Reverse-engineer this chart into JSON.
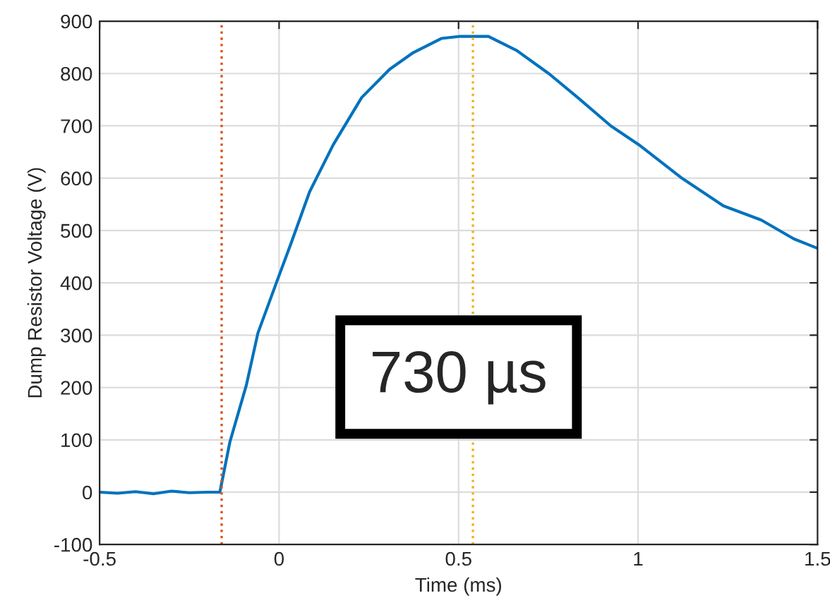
{
  "chart_data": {
    "type": "line",
    "xlabel": "Time (ms)",
    "ylabel": "Dump Resistor Voltage (V)",
    "xlim": [
      -0.5,
      1.5
    ],
    "ylim": [
      -100,
      900
    ],
    "xticks": [
      -0.5,
      0,
      0.5,
      1,
      1.5
    ],
    "yticks": [
      -100,
      0,
      100,
      200,
      300,
      400,
      500,
      600,
      700,
      800,
      900
    ],
    "grid": true,
    "line_style": "solid",
    "marker": "none",
    "series": [
      {
        "color": "#0072bd",
        "x": [
          -0.5,
          -0.45,
          -0.4,
          -0.35,
          -0.3,
          -0.25,
          -0.2,
          -0.165,
          -0.137,
          -0.091,
          -0.059,
          -0.006,
          0.033,
          0.085,
          0.151,
          0.23,
          0.308,
          0.374,
          0.452,
          0.505,
          0.583,
          0.662,
          0.753,
          0.832,
          0.924,
          1.002,
          1.12,
          1.238,
          1.343,
          1.434,
          1.5
        ],
        "values": [
          0,
          -2,
          1,
          -3,
          2,
          -1,
          0,
          0,
          96,
          205,
          304,
          403,
          475,
          574,
          664,
          754,
          808,
          840,
          867,
          871,
          871,
          844,
          799,
          754,
          700,
          664,
          601,
          547,
          520,
          484,
          466
        ]
      }
    ],
    "ref_lines": [
      {
        "axis": "x",
        "value": -0.16,
        "color": "#d95319",
        "line_style": "dotted"
      },
      {
        "axis": "x",
        "value": 0.54,
        "color": "#edb120",
        "line_style": "dotted"
      }
    ],
    "annotations": [
      "730 µs"
    ]
  }
}
